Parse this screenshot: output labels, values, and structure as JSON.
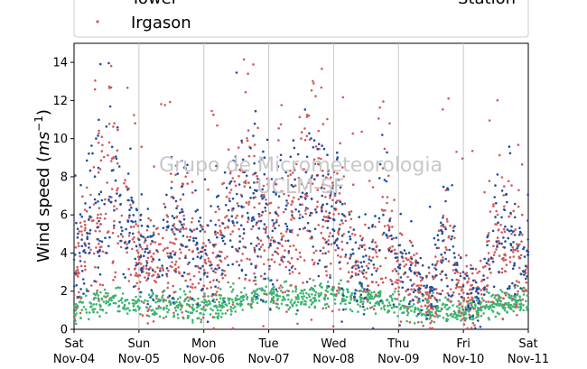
{
  "chart_data": {
    "type": "scatter",
    "title": "",
    "ylabel_main": "Wind speed (",
    "ylabel_unit": "ms",
    "ylabel_exp": "−1",
    "ylabel_close": ")",
    "ylim": [
      0,
      15
    ],
    "yticks": [
      0,
      2,
      4,
      6,
      8,
      10,
      12,
      14
    ],
    "x_range_days": [
      0,
      7
    ],
    "xticks": [
      {
        "day": "Sat",
        "date": "Nov-04"
      },
      {
        "day": "Sun",
        "date": "Nov-05"
      },
      {
        "day": "Mon",
        "date": "Nov-06"
      },
      {
        "day": "Tue",
        "date": "Nov-07"
      },
      {
        "day": "Wed",
        "date": "Nov-08"
      },
      {
        "day": "Thu",
        "date": "Nov-09"
      },
      {
        "day": "Fri",
        "date": "Nov-10"
      },
      {
        "day": "Sat",
        "date": "Nov-11"
      }
    ],
    "grid": "vertical",
    "legend": {
      "placement": "top",
      "entries": [
        {
          "label": "Tower",
          "color": "#1f4e9c"
        },
        {
          "label": "Irgason",
          "color": "#d05a5a"
        },
        {
          "label": "Station",
          "color": "#3cb371"
        }
      ]
    },
    "watermark": [
      "Grupo de Micrometeorologia",
      "UCLM-SF"
    ],
    "series": [
      {
        "name": "Tower",
        "color": "#1f4e9c",
        "profile_days": [
          0,
          0.25,
          0.55,
          0.85,
          1.0,
          1.25,
          1.5,
          1.75,
          2.0,
          2.25,
          2.5,
          2.75,
          3.0,
          3.25,
          3.5,
          3.75,
          4.0,
          4.25,
          4.5,
          4.75,
          5.0,
          5.25,
          5.5,
          5.75,
          6.0,
          6.25,
          6.5,
          6.75,
          7.0
        ],
        "profile_values": [
          3.5,
          5.5,
          8.0,
          5.5,
          4.0,
          3.5,
          5.0,
          5.5,
          3.5,
          4.5,
          6.5,
          7.5,
          6.0,
          5.5,
          6.5,
          7.5,
          6.0,
          5.0,
          2.5,
          6.5,
          3.5,
          2.5,
          2.0,
          5.5,
          1.5,
          2.0,
          5.0,
          4.5,
          4.0
        ]
      },
      {
        "name": "Irgason",
        "color": "#d05a5a",
        "profile_days": [
          0,
          0.25,
          0.55,
          0.85,
          1.0,
          1.25,
          1.5,
          1.75,
          2.0,
          2.25,
          2.5,
          2.75,
          3.0,
          3.25,
          3.5,
          3.75,
          4.0,
          4.25,
          4.5,
          4.75,
          5.0,
          5.25,
          5.5,
          5.75,
          6.0,
          6.25,
          6.5,
          6.75,
          7.0
        ],
        "profile_values": [
          3.0,
          5.0,
          7.0,
          5.0,
          3.5,
          3.5,
          4.5,
          5.0,
          3.0,
          4.0,
          6.0,
          6.5,
          5.0,
          4.5,
          6.0,
          6.5,
          5.0,
          4.5,
          2.5,
          5.5,
          3.0,
          2.5,
          1.5,
          4.5,
          1.5,
          2.0,
          4.5,
          4.0,
          3.5
        ]
      },
      {
        "name": "Station",
        "color": "#3cb371",
        "profile_days": [
          0,
          0.5,
          1.0,
          1.5,
          2.0,
          2.5,
          3.0,
          3.5,
          4.0,
          4.5,
          5.0,
          5.5,
          6.0,
          6.5,
          7.0
        ],
        "profile_values": [
          1.0,
          1.6,
          1.2,
          1.3,
          1.1,
          1.5,
          1.8,
          1.6,
          1.9,
          1.6,
          1.3,
          1.1,
          1.0,
          1.4,
          1.5
        ]
      }
    ]
  }
}
